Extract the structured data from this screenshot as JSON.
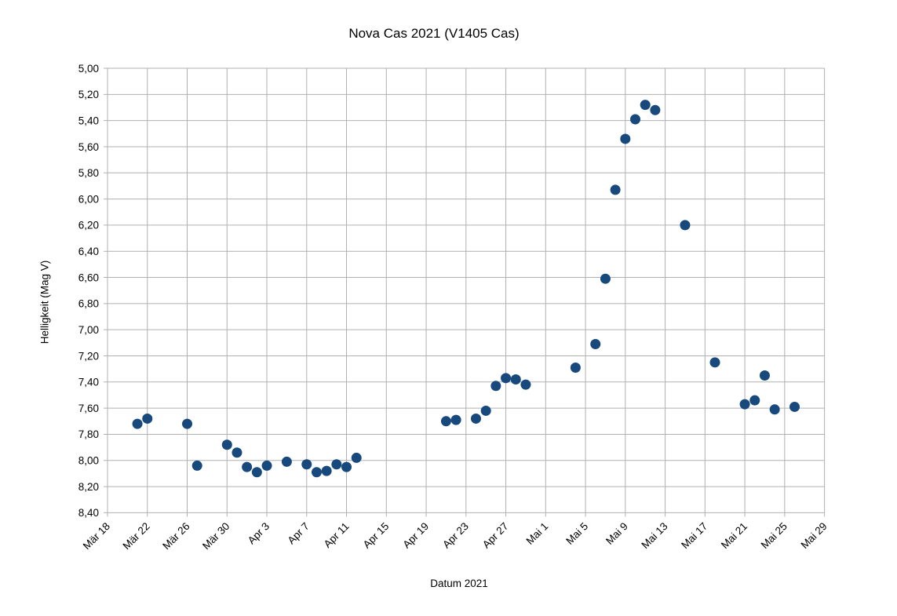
{
  "chart_data": {
    "type": "scatter",
    "title": "Nova Cas 2021 (V1405 Cas)",
    "xlabel": "Datum 2021",
    "ylabel": "Helligkeit (Mag V)",
    "grid": true,
    "legend": "none",
    "colors": {
      "point": "#17497d",
      "grid": "#b0b0b0",
      "text": "#000000",
      "background": "#ffffff"
    },
    "y_axis": {
      "min": 5.0,
      "max": 8.4,
      "step": 0.2,
      "inverted": true,
      "tick_labels": [
        "5,00",
        "5,20",
        "5,40",
        "5,60",
        "5,80",
        "6,00",
        "6,20",
        "6,40",
        "6,60",
        "6,80",
        "7,00",
        "7,20",
        "7,40",
        "7,60",
        "7,80",
        "8,00",
        "8,20",
        "8,40"
      ]
    },
    "x_axis": {
      "tick_interval_days": 4,
      "ticks": [
        {
          "label": "Mär 18",
          "day": 0
        },
        {
          "label": "Mär 22",
          "day": 4
        },
        {
          "label": "Mär 26",
          "day": 8
        },
        {
          "label": "Mär 30",
          "day": 12
        },
        {
          "label": "Apr 3",
          "day": 16
        },
        {
          "label": "Apr 7",
          "day": 20
        },
        {
          "label": "Apr 11",
          "day": 24
        },
        {
          "label": "Apr 15",
          "day": 28
        },
        {
          "label": "Apr 19",
          "day": 32
        },
        {
          "label": "Apr 23",
          "day": 36
        },
        {
          "label": "Apr 27",
          "day": 40
        },
        {
          "label": "Mai 1",
          "day": 44
        },
        {
          "label": "Mai 5",
          "day": 48
        },
        {
          "label": "Mai 9",
          "day": 52
        },
        {
          "label": "Mai 13",
          "day": 56
        },
        {
          "label": "Mai 17",
          "day": 60
        },
        {
          "label": "Mai 21",
          "day": 64
        },
        {
          "label": "Mai 25",
          "day": 68
        },
        {
          "label": "Mai 29",
          "day": 72
        }
      ]
    },
    "series": [
      {
        "points": [
          {
            "date": "Mär 21",
            "day": 3,
            "mag": 7.72
          },
          {
            "date": "Mär 22",
            "day": 4,
            "mag": 7.68
          },
          {
            "date": "Mär 26",
            "day": 8,
            "mag": 7.72
          },
          {
            "date": "Mär 27",
            "day": 9,
            "mag": 8.04
          },
          {
            "date": "Mär 30",
            "day": 12,
            "mag": 7.88
          },
          {
            "date": "Mär 31",
            "day": 13,
            "mag": 7.94
          },
          {
            "date": "Apr 1",
            "day": 14,
            "mag": 8.05
          },
          {
            "date": "Apr 2",
            "day": 15,
            "mag": 8.09
          },
          {
            "date": "Apr 3",
            "day": 16,
            "mag": 8.04
          },
          {
            "date": "Apr 5",
            "day": 18,
            "mag": 8.01
          },
          {
            "date": "Apr 7",
            "day": 20,
            "mag": 8.03
          },
          {
            "date": "Apr 8",
            "day": 21,
            "mag": 8.09
          },
          {
            "date": "Apr 9",
            "day": 22,
            "mag": 8.08
          },
          {
            "date": "Apr 10",
            "day": 23,
            "mag": 8.03
          },
          {
            "date": "Apr 11",
            "day": 24,
            "mag": 8.05
          },
          {
            "date": "Apr 12",
            "day": 25,
            "mag": 7.98
          },
          {
            "date": "Apr 21",
            "day": 34,
            "mag": 7.7
          },
          {
            "date": "Apr 22",
            "day": 35,
            "mag": 7.69
          },
          {
            "date": "Apr 24",
            "day": 37,
            "mag": 7.68
          },
          {
            "date": "Apr 25",
            "day": 38,
            "mag": 7.62
          },
          {
            "date": "Apr 26",
            "day": 39,
            "mag": 7.43
          },
          {
            "date": "Apr 27",
            "day": 40,
            "mag": 7.37
          },
          {
            "date": "Apr 28",
            "day": 41,
            "mag": 7.38
          },
          {
            "date": "Apr 29",
            "day": 42,
            "mag": 7.42
          },
          {
            "date": "Mai 4",
            "day": 47,
            "mag": 7.29
          },
          {
            "date": "Mai 6",
            "day": 49,
            "mag": 7.11
          },
          {
            "date": "Mai 7",
            "day": 50,
            "mag": 6.61
          },
          {
            "date": "Mai 8",
            "day": 51,
            "mag": 5.93
          },
          {
            "date": "Mai 9",
            "day": 52,
            "mag": 5.54
          },
          {
            "date": "Mai 10",
            "day": 53,
            "mag": 5.39
          },
          {
            "date": "Mai 11",
            "day": 54,
            "mag": 5.28
          },
          {
            "date": "Mai 12",
            "day": 55,
            "mag": 5.32
          },
          {
            "date": "Mai 15",
            "day": 58,
            "mag": 6.2
          },
          {
            "date": "Mai 18",
            "day": 61,
            "mag": 7.25
          },
          {
            "date": "Mai 21",
            "day": 64,
            "mag": 7.57
          },
          {
            "date": "Mai 22",
            "day": 65,
            "mag": 7.54
          },
          {
            "date": "Mai 23",
            "day": 66,
            "mag": 7.35
          },
          {
            "date": "Mai 24",
            "day": 67,
            "mag": 7.61
          },
          {
            "date": "Mai 26",
            "day": 69,
            "mag": 7.59
          }
        ]
      }
    ]
  }
}
